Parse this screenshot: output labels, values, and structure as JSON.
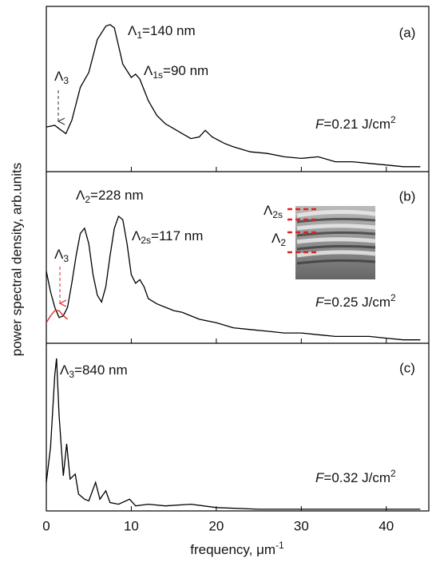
{
  "chart_data": [
    {
      "type": "line",
      "panel_label": "(a)",
      "xlim": [
        0,
        45
      ],
      "ylim": [
        0,
        1
      ],
      "x": [
        0,
        1,
        1.5,
        2.3,
        3,
        4,
        5,
        6,
        7,
        7.5,
        8,
        9,
        10,
        10.5,
        11,
        12,
        13,
        14,
        15,
        16,
        17,
        18,
        18.7,
        19.5,
        21,
        22,
        24,
        26,
        28,
        30,
        32,
        34,
        36,
        38,
        40,
        42,
        44
      ],
      "series": [
        {
          "color": "#000000",
          "values": [
            0.27,
            0.28,
            0.26,
            0.23,
            0.31,
            0.51,
            0.6,
            0.8,
            0.88,
            0.89,
            0.87,
            0.65,
            0.57,
            0.59,
            0.56,
            0.43,
            0.34,
            0.29,
            0.26,
            0.23,
            0.2,
            0.21,
            0.25,
            0.21,
            0.17,
            0.15,
            0.12,
            0.11,
            0.09,
            0.08,
            0.09,
            0.06,
            0.06,
            0.05,
            0.04,
            0.03,
            0.03
          ]
        }
      ],
      "annotations": [
        {
          "main": "Λ",
          "sub": "1",
          "rest": "=140 nm"
        },
        {
          "main": "Λ",
          "sub": "1s",
          "rest": "=90 nm"
        },
        {
          "main": "Λ",
          "sub": "3"
        },
        {
          "italic": "F",
          "rest": "=0.21 J/cm",
          "sup": "2"
        }
      ],
      "ylabel": "power spectral density, arb.units"
    },
    {
      "type": "line",
      "panel_label": "(b)",
      "xlim": [
        0,
        45
      ],
      "ylim": [
        0,
        1
      ],
      "x": [
        0,
        0.5,
        1,
        1.5,
        2,
        2.5,
        3,
        3.5,
        4,
        4.5,
        5,
        5.5,
        6,
        6.5,
        7,
        7.5,
        8,
        8.5,
        9,
        9.5,
        10,
        10.5,
        11,
        11.5,
        12,
        13,
        14,
        15,
        16,
        17,
        18,
        20,
        22,
        24,
        26,
        28,
        30,
        32,
        34,
        36,
        38,
        40,
        42,
        44
      ],
      "series": [
        {
          "color": "#000000",
          "values": [
            0.42,
            0.3,
            0.21,
            0.15,
            0.16,
            0.21,
            0.35,
            0.51,
            0.64,
            0.67,
            0.58,
            0.4,
            0.28,
            0.24,
            0.33,
            0.51,
            0.67,
            0.74,
            0.72,
            0.58,
            0.4,
            0.35,
            0.37,
            0.33,
            0.26,
            0.23,
            0.21,
            0.19,
            0.18,
            0.16,
            0.14,
            0.12,
            0.09,
            0.08,
            0.07,
            0.06,
            0.06,
            0.05,
            0.04,
            0.04,
            0.04,
            0.03,
            0.02,
            0.02
          ]
        },
        {
          "color": "#e02020",
          "values": [
            0.12,
            0.16,
            0.19,
            0.19,
            0.16,
            0.14,
            null,
            null,
            null,
            null,
            null,
            null,
            null,
            null,
            null,
            null,
            null,
            null,
            null,
            null,
            null,
            null,
            null,
            null,
            null,
            null,
            null,
            null,
            null,
            null,
            null,
            null,
            null,
            null,
            null,
            null,
            null,
            null,
            null,
            null,
            null,
            null,
            null,
            null
          ]
        }
      ],
      "annotations": [
        {
          "main": "Λ",
          "sub": "2",
          "rest": "=228 nm"
        },
        {
          "main": "Λ",
          "sub": "2s",
          "rest": "=117 nm"
        },
        {
          "main": "Λ",
          "sub": "3"
        },
        {
          "italic": "F",
          "rest": "=0.25 J/cm",
          "sup": "2"
        },
        {
          "main": "Λ",
          "sub": "2s"
        },
        {
          "main": "Λ",
          "sub": "2"
        }
      ]
    },
    {
      "type": "line",
      "panel_label": "(c)",
      "xlim": [
        0,
        45
      ],
      "ylim": [
        0,
        1
      ],
      "x": [
        0,
        0.5,
        1,
        1.2,
        1.5,
        2,
        2.4,
        2.8,
        3.4,
        3.8,
        4.5,
        5,
        5.8,
        6.3,
        7,
        7.5,
        8.5,
        9.8,
        10.5,
        12,
        14,
        17,
        20,
        25,
        30,
        35,
        40,
        44
      ],
      "series": [
        {
          "color": "#000000",
          "values": [
            0.17,
            0.38,
            0.81,
            0.91,
            0.57,
            0.21,
            0.4,
            0.19,
            0.22,
            0.1,
            0.07,
            0.06,
            0.17,
            0.07,
            0.12,
            0.05,
            0.04,
            0.07,
            0.03,
            0.04,
            0.03,
            0.04,
            0.02,
            0.01,
            0.01,
            0.01,
            0.01,
            0.01
          ]
        }
      ],
      "annotations": [
        {
          "main": "Λ",
          "sub": "3",
          "rest": "=840 nm"
        },
        {
          "italic": "F",
          "rest": "=0.32 J/cm",
          "sup": "2"
        }
      ],
      "xticks": [
        0,
        10,
        20,
        30,
        40
      ],
      "xlabel": {
        "rest": "frequency, μm",
        "sup": "-1"
      }
    }
  ]
}
